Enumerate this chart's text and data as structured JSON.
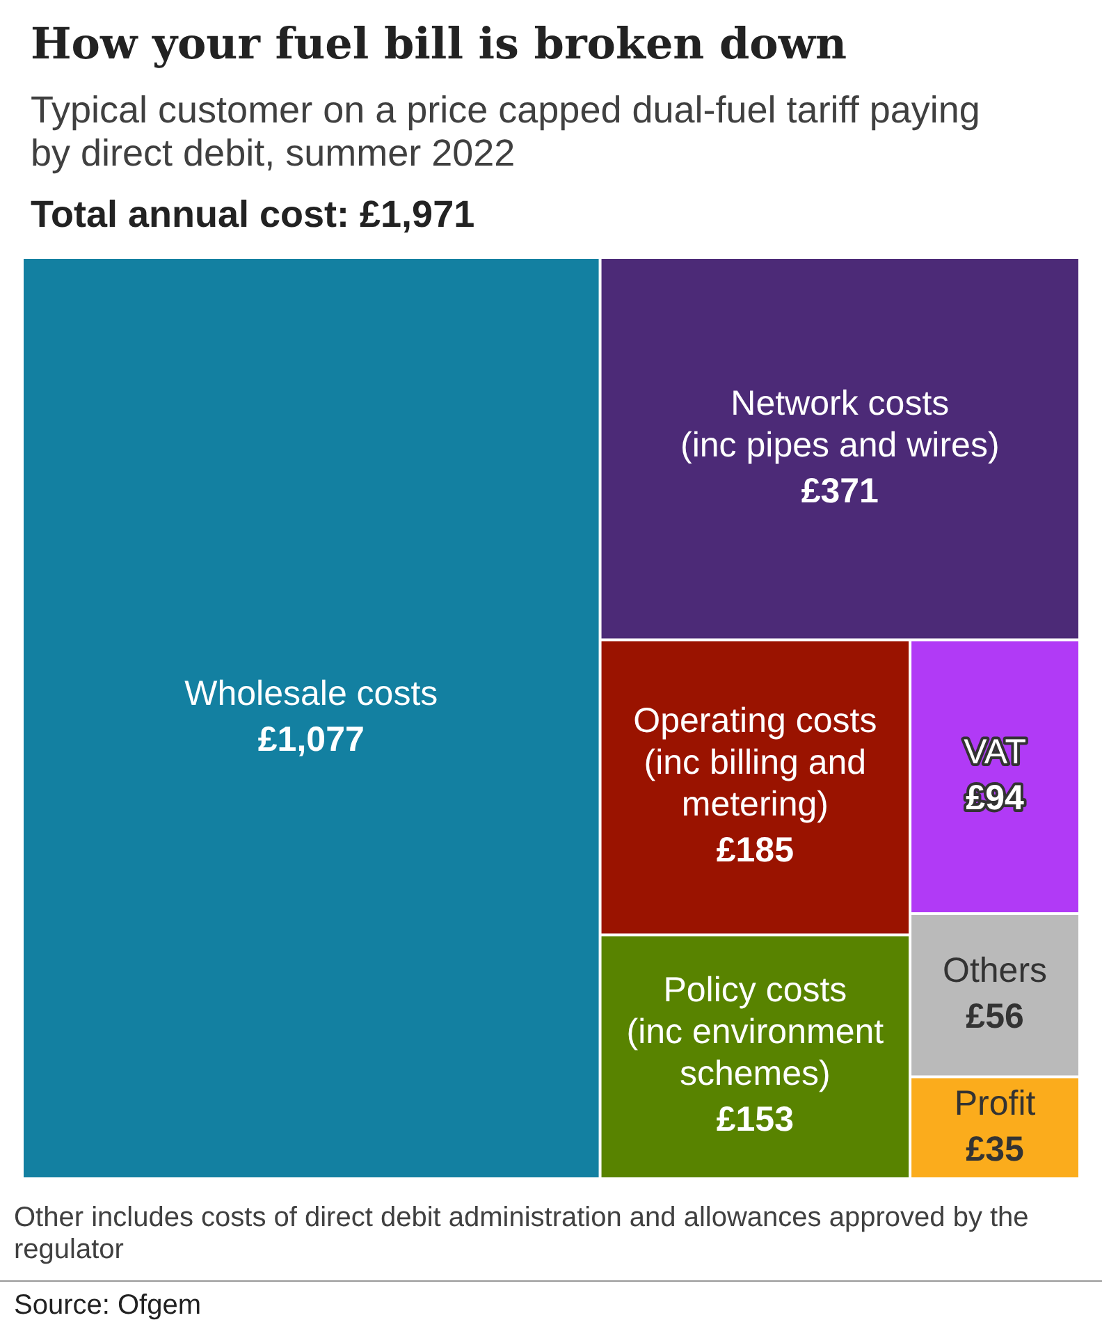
{
  "chart_data": {
    "type": "other",
    "title": "How your fuel bill is broken down",
    "subtitle": "Typical customer on a price capped dual-fuel tariff paying by direct debit, summer 2022",
    "categories": [
      "Wholesale costs",
      "Network costs (inc pipes and wires)",
      "Operating costs (inc billing and metering)",
      "Policy costs (inc environment schemes)",
      "VAT",
      "Others",
      "Profit"
    ],
    "values": [
      1077,
      371,
      185,
      153,
      94,
      56,
      35
    ],
    "value_labels": [
      "£1,077",
      "£371",
      "£185",
      "£153",
      "£94",
      "£56",
      "£35"
    ],
    "colors": [
      "#1380a1",
      "#4c2a77",
      "#9a1300",
      "#588300",
      "#b13af6",
      "#bababa",
      "#fbac1c"
    ],
    "annotations": [
      "Total annual cost: £1,971",
      "Other includes costs of direct debit administration and allowances approved by the regulator",
      "Source: Ofgem"
    ]
  }
}
